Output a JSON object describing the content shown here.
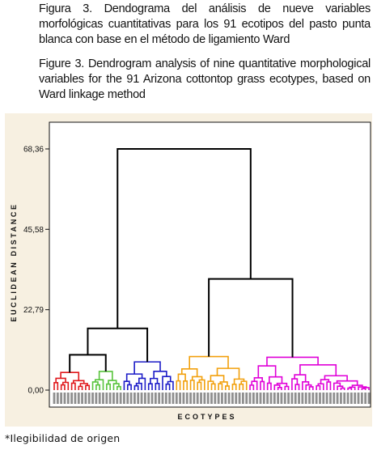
{
  "caption_es": "Figura 3. Dendograma del análisis de nueve variables morfológicas cuantitativas para los 91 ecotipos del pasto punta blanca con base en el método de ligamiento Ward",
  "caption_en": "Figure 3. Dendrogram analysis of nine quantitative morphological variables for the 91 Arizona cottontop grass ecotypes, based on Ward linkage method",
  "footnote": "*Ilegibilidad de origen",
  "chart_data": {
    "type": "dendrogram",
    "title": "",
    "xlabel": "ECOTYPES",
    "ylabel": "EUCLIDEAN DISTANCE",
    "yticks": [
      "0,00",
      "22,79",
      "45,58",
      "68,36"
    ],
    "ylim": [
      0,
      68.36
    ],
    "leaf_count": 91,
    "leaf_labels_legible": false,
    "clusters": [
      {
        "name": "cluster-1",
        "color": "#e0181c",
        "leaves": 11,
        "height": 5.0
      },
      {
        "name": "cluster-2",
        "color": "#58c43c",
        "leaves": 9,
        "height": 5.3
      },
      {
        "name": "cluster-3",
        "color": "#1c1cc8",
        "leaves": 15,
        "height": 8.0
      },
      {
        "name": "cluster-4",
        "color": "#f2a00c",
        "leaves": 21,
        "height": 9.5
      },
      {
        "name": "cluster-5",
        "color": "#e000d8",
        "leaves": 35,
        "height": 9.3
      }
    ],
    "merges": [
      {
        "left": "cluster-1",
        "right": "cluster-2",
        "height": 10.0
      },
      {
        "left": "cluster-1+cluster-2",
        "right": "cluster-3",
        "height": 17.5
      },
      {
        "left": "cluster-4",
        "right": "cluster-5",
        "height": 31.5
      },
      {
        "left": "cluster-1+cluster-2+cluster-3",
        "right": "cluster-4+cluster-5",
        "height": 68.36
      }
    ],
    "line_color_upper": "#000000"
  }
}
